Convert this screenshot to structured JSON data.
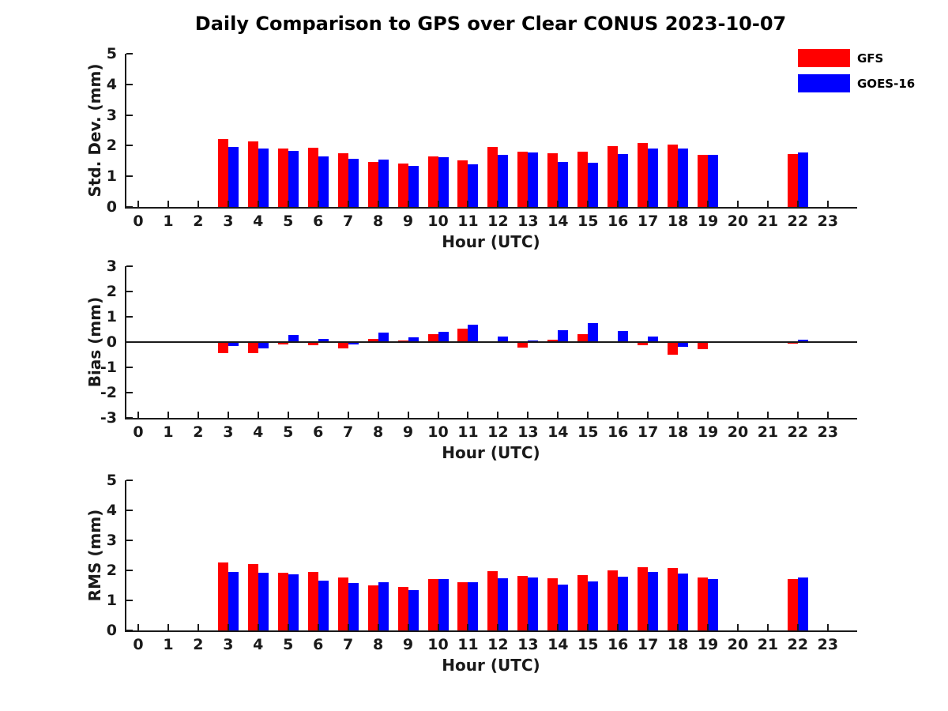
{
  "title": "Daily Comparison to GPS over Clear CONUS 2023-10-07",
  "legend": {
    "items": [
      {
        "label": "GFS",
        "color": "#ff0000"
      },
      {
        "label": "GOES-16",
        "color": "#0000ff"
      }
    ]
  },
  "chart_data": [
    {
      "type": "bar",
      "ylabel": "Std. Dev. (mm)",
      "xlabel": "Hour (UTC)",
      "ylim": [
        0,
        5
      ],
      "yticks": [
        0,
        1,
        2,
        3,
        4,
        5
      ],
      "grid": false,
      "legend_position": "top-right",
      "hours": [
        0,
        1,
        2,
        3,
        4,
        5,
        6,
        7,
        8,
        9,
        10,
        11,
        12,
        13,
        14,
        15,
        16,
        17,
        18,
        19,
        20,
        21,
        22,
        23
      ],
      "series": [
        {
          "name": "GFS",
          "color": "#ff0000",
          "values": [
            null,
            null,
            null,
            2.22,
            2.13,
            1.91,
            1.94,
            1.74,
            1.48,
            1.43,
            1.65,
            1.52,
            1.97,
            1.8,
            1.74,
            1.8,
            1.99,
            2.08,
            2.03,
            1.71,
            null,
            null,
            1.72,
            null
          ]
        },
        {
          "name": "GOES-16",
          "color": "#0000ff",
          "values": [
            null,
            null,
            null,
            1.95,
            1.9,
            1.83,
            1.65,
            1.56,
            1.54,
            1.33,
            1.63,
            1.4,
            1.71,
            1.78,
            1.47,
            1.44,
            1.73,
            1.92,
            1.9,
            1.7,
            null,
            null,
            1.77,
            null
          ]
        }
      ]
    },
    {
      "type": "bar",
      "ylabel": "Bias (mm)",
      "xlabel": "Hour (UTC)",
      "ylim": [
        -3,
        3
      ],
      "yticks": [
        3,
        2,
        1,
        0,
        -1,
        -2,
        -3
      ],
      "zero_line": true,
      "grid": false,
      "hours": [
        0,
        1,
        2,
        3,
        4,
        5,
        6,
        7,
        8,
        9,
        10,
        11,
        12,
        13,
        14,
        15,
        16,
        17,
        18,
        19,
        20,
        21,
        22,
        23
      ],
      "series": [
        {
          "name": "GFS",
          "color": "#ff0000",
          "values": [
            null,
            null,
            null,
            -0.45,
            -0.45,
            -0.1,
            -0.12,
            -0.26,
            0.12,
            0.07,
            0.3,
            0.52,
            0.0,
            -0.22,
            0.1,
            0.3,
            0.0,
            -0.12,
            -0.5,
            -0.27,
            null,
            null,
            -0.06,
            null
          ]
        },
        {
          "name": "GOES-16",
          "color": "#0000ff",
          "values": [
            null,
            null,
            null,
            -0.15,
            -0.25,
            0.27,
            0.13,
            -0.08,
            0.37,
            0.2,
            0.42,
            0.7,
            0.23,
            0.06,
            0.46,
            0.75,
            0.45,
            0.22,
            -0.2,
            0.0,
            null,
            null,
            0.1,
            null
          ]
        }
      ]
    },
    {
      "type": "bar",
      "ylabel": "RMS (mm)",
      "xlabel": "Hour (UTC)",
      "ylim": [
        0,
        5
      ],
      "yticks": [
        0,
        1,
        2,
        3,
        4,
        5
      ],
      "grid": false,
      "hours": [
        0,
        1,
        2,
        3,
        4,
        5,
        6,
        7,
        8,
        9,
        10,
        11,
        12,
        13,
        14,
        15,
        16,
        17,
        18,
        19,
        20,
        21,
        22,
        23
      ],
      "series": [
        {
          "name": "GFS",
          "color": "#ff0000",
          "values": [
            null,
            null,
            null,
            2.26,
            2.2,
            1.93,
            1.96,
            1.77,
            1.51,
            1.46,
            1.7,
            1.61,
            1.98,
            1.82,
            1.75,
            1.85,
            2.0,
            2.1,
            2.07,
            1.77,
            null,
            null,
            1.7,
            null
          ]
        },
        {
          "name": "GOES-16",
          "color": "#0000ff",
          "values": [
            null,
            null,
            null,
            1.96,
            1.93,
            1.88,
            1.66,
            1.59,
            1.61,
            1.33,
            1.7,
            1.61,
            1.73,
            1.77,
            1.53,
            1.63,
            1.79,
            1.94,
            1.9,
            1.72,
            null,
            null,
            1.77,
            null
          ]
        }
      ]
    }
  ]
}
